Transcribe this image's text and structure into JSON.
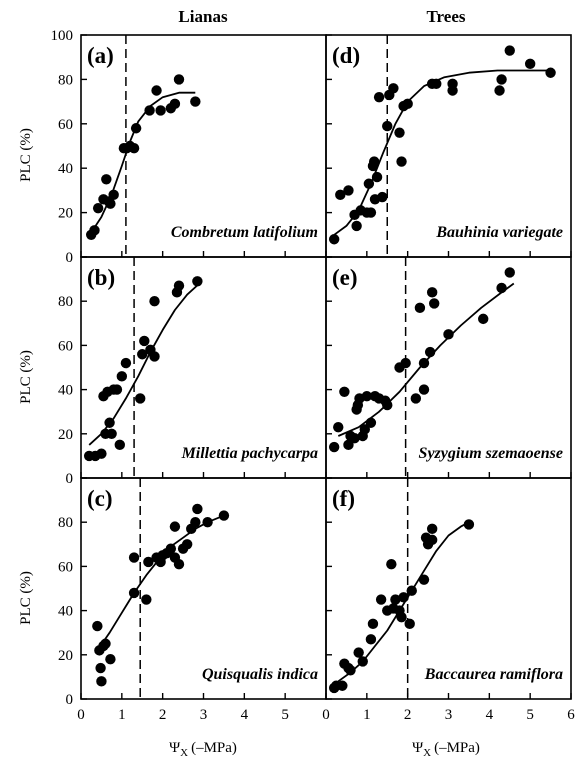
{
  "column_titles": [
    "Lianas",
    "Trees"
  ],
  "y_label": "PLC (%)",
  "x_label_symbol": "Ψ",
  "x_label_sub": "X",
  "x_label_unit": "(–MPa)",
  "chart_data": [
    {
      "type": "scatter",
      "panel": "(a)",
      "species": "Combretum latifolium",
      "column": "Lianas",
      "xlim": [
        0,
        6
      ],
      "ylim": [
        0,
        100
      ],
      "xticks": [
        0,
        1,
        2,
        3,
        4,
        5
      ],
      "yticks": [
        0,
        20,
        40,
        60,
        80,
        100
      ],
      "threshold_x": 1.1,
      "fit": {
        "x": [
          0.25,
          0.5,
          0.75,
          1.0,
          1.2,
          1.4,
          1.7,
          2.0,
          2.4,
          2.8
        ],
        "y": [
          11,
          18,
          28,
          41,
          52,
          61,
          68,
          72,
          74,
          74
        ]
      },
      "points": {
        "x": [
          0.25,
          0.33,
          0.42,
          0.55,
          0.62,
          0.68,
          0.72,
          0.8,
          1.05,
          1.12,
          1.2,
          1.3,
          1.35,
          1.68,
          1.85,
          1.95,
          2.2,
          2.3,
          2.4,
          2.8
        ],
        "y": [
          10,
          12,
          22,
          26,
          35,
          25,
          24,
          28,
          49,
          49,
          50,
          49,
          58,
          66,
          75,
          66,
          67,
          69,
          80,
          70
        ]
      }
    },
    {
      "type": "scatter",
      "panel": "(b)",
      "species": "Millettia pachycarpa",
      "column": "Lianas",
      "xlim": [
        0,
        6
      ],
      "ylim": [
        0,
        100
      ],
      "xticks": [
        0,
        1,
        2,
        3,
        4,
        5
      ],
      "yticks": [
        0,
        20,
        40,
        60,
        80,
        100
      ],
      "threshold_x": 1.3,
      "fit": {
        "x": [
          0.2,
          0.5,
          0.8,
          1.1,
          1.4,
          1.7,
          2.0,
          2.3,
          2.6,
          2.9
        ],
        "y": [
          15,
          20,
          27,
          36,
          46,
          57,
          67,
          76,
          83,
          88
        ]
      },
      "points": {
        "x": [
          0.2,
          0.35,
          0.5,
          0.55,
          0.6,
          0.65,
          0.7,
          0.75,
          0.8,
          0.88,
          0.95,
          1.0,
          1.1,
          1.45,
          1.5,
          1.55,
          1.7,
          1.8,
          1.8,
          2.35,
          2.4,
          2.85
        ],
        "y": [
          10,
          10,
          11,
          37,
          20,
          39,
          25,
          20,
          40,
          40,
          15,
          46,
          52,
          36,
          56,
          62,
          58,
          55,
          80,
          84,
          87,
          89
        ]
      }
    },
    {
      "type": "scatter",
      "panel": "(c)",
      "species": "Quisqualis indica",
      "column": "Lianas",
      "xlim": [
        0,
        6
      ],
      "ylim": [
        0,
        100
      ],
      "xticks": [
        0,
        1,
        2,
        3,
        4,
        5
      ],
      "yticks": [
        0,
        20,
        40,
        60,
        80,
        100
      ],
      "threshold_x": 1.45,
      "fit": {
        "x": [
          0.4,
          0.7,
          1.0,
          1.3,
          1.6,
          1.9,
          2.2,
          2.5,
          2.8,
          3.1,
          3.5
        ],
        "y": [
          22,
          30,
          39,
          48,
          56,
          63,
          69,
          73,
          77,
          80,
          83
        ]
      },
      "points": {
        "x": [
          0.4,
          0.45,
          0.48,
          0.5,
          0.55,
          0.6,
          0.72,
          1.3,
          1.3,
          1.6,
          1.65,
          1.85,
          1.95,
          2.0,
          2.1,
          2.2,
          2.3,
          2.3,
          2.4,
          2.5,
          2.6,
          2.7,
          2.8,
          2.85,
          3.1,
          3.5
        ],
        "y": [
          33,
          22,
          14,
          8,
          24,
          25,
          18,
          48,
          64,
          45,
          62,
          64,
          62,
          65,
          66,
          68,
          78,
          64,
          61,
          68,
          70,
          77,
          80,
          86,
          80,
          83
        ]
      }
    },
    {
      "type": "scatter",
      "panel": "(d)",
      "species": "Bauhinia variegate",
      "column": "Trees",
      "xlim": [
        0,
        6
      ],
      "ylim": [
        0,
        100
      ],
      "xticks": [
        0,
        1,
        2,
        3,
        4,
        5,
        6
      ],
      "yticks": [
        0,
        20,
        40,
        60,
        80,
        100
      ],
      "threshold_x": 1.5,
      "fit": {
        "x": [
          0.2,
          0.5,
          0.8,
          1.1,
          1.4,
          1.7,
          2.0,
          2.4,
          2.9,
          3.5,
          4.2,
          5.0,
          5.5
        ],
        "y": [
          10,
          14,
          21,
          33,
          47,
          60,
          70,
          77,
          81,
          83,
          84,
          84,
          84
        ]
      },
      "points": {
        "x": [
          0.2,
          0.35,
          0.55,
          0.7,
          0.75,
          0.85,
          1.0,
          1.05,
          1.1,
          1.15,
          1.18,
          1.2,
          1.25,
          1.3,
          1.38,
          1.5,
          1.55,
          1.65,
          1.8,
          1.85,
          1.9,
          2.0,
          2.6,
          2.7,
          3.1,
          3.1,
          4.25,
          4.3,
          4.5,
          5.0,
          5.5
        ],
        "y": [
          8,
          28,
          30,
          19,
          14,
          21,
          20,
          33,
          20,
          41,
          43,
          26,
          36,
          72,
          27,
          59,
          73,
          76,
          56,
          43,
          68,
          69,
          78,
          78,
          75,
          78,
          75,
          80,
          93,
          87,
          83
        ]
      }
    },
    {
      "type": "scatter",
      "panel": "(e)",
      "species": "Syzygium szemaoense",
      "column": "Trees",
      "xlim": [
        0,
        6
      ],
      "ylim": [
        0,
        100
      ],
      "xticks": [
        0,
        1,
        2,
        3,
        4,
        5,
        6
      ],
      "yticks": [
        0,
        20,
        40,
        60,
        80,
        100
      ],
      "threshold_x": 1.95,
      "fit": {
        "x": [
          0.3,
          0.8,
          1.3,
          1.8,
          2.3,
          2.8,
          3.3,
          3.8,
          4.3,
          4.6
        ],
        "y": [
          19,
          23,
          30,
          39,
          50,
          60,
          69,
          77,
          84,
          88
        ]
      },
      "points": {
        "x": [
          0.2,
          0.3,
          0.45,
          0.55,
          0.6,
          0.7,
          0.75,
          0.78,
          0.82,
          0.9,
          0.95,
          1.0,
          1.1,
          1.2,
          1.3,
          1.45,
          1.5,
          1.8,
          1.95,
          2.2,
          2.3,
          2.4,
          2.4,
          2.55,
          2.6,
          2.65,
          3.0,
          3.85,
          4.3,
          4.5
        ],
        "y": [
          14,
          23,
          39,
          15,
          19,
          18,
          31,
          33,
          36,
          19,
          22,
          37,
          25,
          37,
          36,
          35,
          33,
          50,
          52,
          36,
          77,
          40,
          52,
          57,
          84,
          79,
          65,
          72,
          86,
          93
        ]
      }
    },
    {
      "type": "scatter",
      "panel": "(f)",
      "species": "Baccaurea ramiflora",
      "column": "Trees",
      "xlim": [
        0,
        6
      ],
      "ylim": [
        0,
        100
      ],
      "xticks": [
        0,
        1,
        2,
        3,
        4,
        5,
        6
      ],
      "yticks": [
        0,
        20,
        40,
        60,
        80,
        100
      ],
      "threshold_x": 2.0,
      "fit": {
        "x": [
          0.3,
          0.6,
          0.9,
          1.2,
          1.5,
          1.8,
          2.1,
          2.4,
          2.7,
          3.0,
          3.3,
          3.5
        ],
        "y": [
          8,
          12,
          17,
          24,
          31,
          40,
          49,
          58,
          67,
          74,
          78,
          80
        ]
      },
      "points": {
        "x": [
          0.2,
          0.25,
          0.4,
          0.45,
          0.55,
          0.6,
          0.8,
          0.9,
          1.1,
          1.15,
          1.35,
          1.5,
          1.6,
          1.65,
          1.7,
          1.8,
          1.85,
          1.9,
          2.05,
          2.1,
          2.4,
          2.45,
          2.5,
          2.6,
          2.6,
          3.5
        ],
        "y": [
          5,
          6,
          6,
          16,
          14,
          13,
          21,
          17,
          27,
          34,
          45,
          40,
          61,
          41,
          45,
          40,
          37,
          46,
          34,
          49,
          54,
          73,
          70,
          72,
          77,
          79
        ]
      }
    }
  ]
}
